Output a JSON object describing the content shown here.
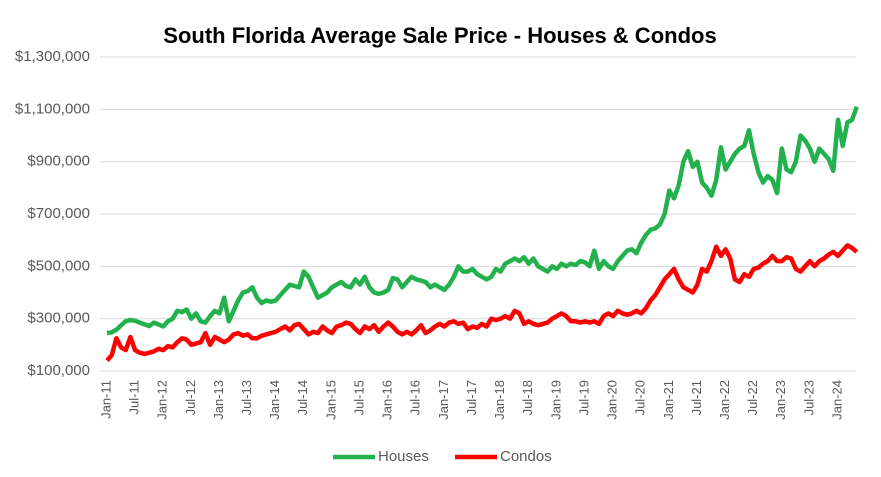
{
  "chart_data": {
    "type": "line",
    "title": "South Florida Average Sale Price - Houses & Condos",
    "categories": [
      "Jan-11",
      null,
      null,
      null,
      null,
      null,
      "Jul-11",
      null,
      null,
      null,
      null,
      null,
      "Jan-12",
      null,
      null,
      null,
      null,
      null,
      "Jul-12",
      null,
      null,
      null,
      null,
      null,
      "Jan-13",
      null,
      null,
      null,
      null,
      null,
      "Jul-13",
      null,
      null,
      null,
      null,
      null,
      "Jan-14",
      null,
      null,
      null,
      null,
      null,
      "Jul-14",
      null,
      null,
      null,
      null,
      null,
      "Jan-15",
      null,
      null,
      null,
      null,
      null,
      "Jul-15",
      null,
      null,
      null,
      null,
      null,
      "Jan-16",
      null,
      null,
      null,
      null,
      null,
      "Jul-16",
      null,
      null,
      null,
      null,
      null,
      "Jan-17",
      null,
      null,
      null,
      null,
      null,
      "Jul-17",
      null,
      null,
      null,
      null,
      null,
      "Jan-18",
      null,
      null,
      null,
      null,
      null,
      "Jul-18",
      null,
      null,
      null,
      null,
      null,
      "Jan-19",
      null,
      null,
      null,
      null,
      null,
      "Jul-19",
      null,
      null,
      null,
      null,
      null,
      "Jan-20",
      null,
      null,
      null,
      null,
      null,
      "Jul-20",
      null,
      null,
      null,
      null,
      null,
      "Jan-21",
      null,
      null,
      null,
      null,
      null,
      "Jul-21",
      null,
      null,
      null,
      null,
      null,
      "Jan-22",
      null,
      null,
      null,
      null,
      null,
      "Jul-22",
      null,
      null,
      null,
      null,
      null,
      "Jan-23",
      null,
      null,
      null,
      null,
      null,
      "Jul-23",
      null,
      null,
      null,
      null,
      null,
      "Jan-24",
      null,
      null,
      null,
      null
    ],
    "series": [
      {
        "name": "Houses",
        "color": "#22b14c",
        "values": [
          245000,
          248000,
          258000,
          275000,
          290000,
          295000,
          292000,
          285000,
          278000,
          272000,
          285000,
          278000,
          270000,
          290000,
          300000,
          330000,
          325000,
          335000,
          300000,
          320000,
          290000,
          285000,
          310000,
          330000,
          320000,
          380000,
          290000,
          330000,
          370000,
          400000,
          405000,
          420000,
          380000,
          360000,
          370000,
          365000,
          370000,
          390000,
          410000,
          430000,
          425000,
          420000,
          480000,
          460000,
          420000,
          380000,
          390000,
          400000,
          420000,
          430000,
          440000,
          425000,
          420000,
          450000,
          430000,
          460000,
          420000,
          400000,
          395000,
          400000,
          410000,
          455000,
          450000,
          420000,
          440000,
          460000,
          450000,
          445000,
          440000,
          420000,
          430000,
          420000,
          410000,
          430000,
          460000,
          500000,
          480000,
          480000,
          490000,
          470000,
          460000,
          450000,
          460000,
          490000,
          480000,
          510000,
          520000,
          530000,
          520000,
          535000,
          510000,
          530000,
          500000,
          490000,
          480000,
          500000,
          490000,
          510000,
          500000,
          510000,
          505000,
          520000,
          515000,
          500000,
          560000,
          490000,
          520000,
          500000,
          490000,
          520000,
          540000,
          560000,
          565000,
          550000,
          590000,
          620000,
          640000,
          645000,
          660000,
          700000,
          790000,
          760000,
          810000,
          900000,
          940000,
          880000,
          900000,
          820000,
          800000,
          770000,
          830000,
          955000,
          870000,
          900000,
          930000,
          950000,
          960000,
          1020000,
          930000,
          860000,
          820000,
          845000,
          830000,
          780000,
          950000,
          870000,
          860000,
          900000,
          1000000,
          980000,
          950000,
          900000,
          950000,
          930000,
          910000,
          865000,
          1060000,
          960000,
          1050000,
          1060000,
          1110000
        ]
      },
      {
        "name": "Condos",
        "color": "#ff0000",
        "values": [
          140000,
          160000,
          225000,
          190000,
          180000,
          230000,
          180000,
          170000,
          165000,
          170000,
          175000,
          185000,
          180000,
          195000,
          190000,
          210000,
          225000,
          220000,
          200000,
          205000,
          210000,
          245000,
          200000,
          230000,
          220000,
          210000,
          220000,
          240000,
          245000,
          235000,
          240000,
          225000,
          225000,
          235000,
          240000,
          245000,
          250000,
          260000,
          270000,
          255000,
          275000,
          280000,
          260000,
          240000,
          250000,
          245000,
          270000,
          255000,
          245000,
          270000,
          275000,
          285000,
          280000,
          260000,
          245000,
          270000,
          260000,
          275000,
          250000,
          270000,
          285000,
          270000,
          250000,
          240000,
          250000,
          240000,
          255000,
          275000,
          245000,
          255000,
          270000,
          280000,
          270000,
          285000,
          290000,
          280000,
          285000,
          260000,
          270000,
          265000,
          280000,
          270000,
          300000,
          295000,
          300000,
          310000,
          300000,
          330000,
          320000,
          280000,
          290000,
          280000,
          275000,
          280000,
          285000,
          300000,
          310000,
          320000,
          310000,
          290000,
          290000,
          285000,
          290000,
          285000,
          290000,
          280000,
          310000,
          320000,
          310000,
          330000,
          320000,
          315000,
          320000,
          330000,
          320000,
          340000,
          370000,
          390000,
          420000,
          450000,
          470000,
          490000,
          450000,
          420000,
          410000,
          400000,
          430000,
          490000,
          480000,
          520000,
          575000,
          540000,
          565000,
          530000,
          450000,
          440000,
          470000,
          460000,
          490000,
          495000,
          510000,
          520000,
          540000,
          520000,
          520000,
          535000,
          530000,
          490000,
          480000,
          500000,
          520000,
          500000,
          520000,
          530000,
          545000,
          555000,
          540000,
          560000,
          580000,
          570000,
          555000
        ]
      }
    ],
    "ylim": [
      100000,
      1300000
    ],
    "yticks": [
      {
        "value": 100000,
        "label": "$100,000"
      },
      {
        "value": 300000,
        "label": "$300,000"
      },
      {
        "value": 500000,
        "label": "$500,000"
      },
      {
        "value": 700000,
        "label": "$700,000"
      },
      {
        "value": 900000,
        "label": "$900,000"
      },
      {
        "value": 1100000,
        "label": "$1,100,000"
      },
      {
        "value": 1300000,
        "label": "$1,300,000"
      }
    ],
    "grid": true,
    "legend": "bottom"
  }
}
